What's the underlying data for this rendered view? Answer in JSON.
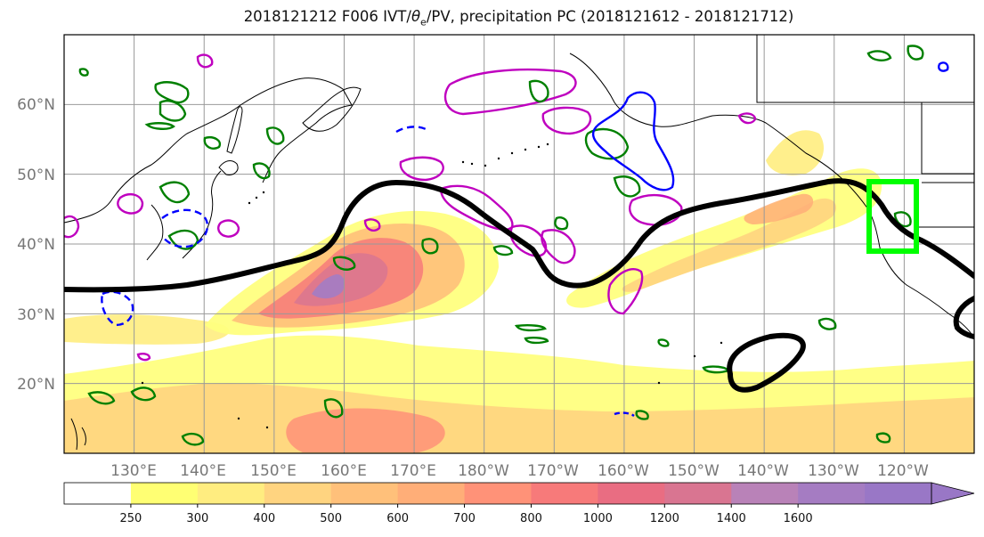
{
  "title": {
    "prefix": "2018121212 F006 IVT/",
    "theta": "θ",
    "theta_sub": "e",
    "suffix": "/PV, precipitation PC (2018121612 - 2018121712)"
  },
  "lat_labels": [
    "60°N",
    "50°N",
    "40°N",
    "30°N",
    "20°N"
  ],
  "lon_labels": [
    "130°E",
    "140°E",
    "150°E",
    "160°E",
    "170°E",
    "180°W",
    "170°W",
    "160°W",
    "150°W",
    "140°W",
    "130°W",
    "120°W"
  ],
  "colorbar": {
    "ticks": [
      "250",
      "300",
      "400",
      "500",
      "600",
      "700",
      "800",
      "1000",
      "1200",
      "1400",
      "1600"
    ],
    "colors": [
      "#ffffff",
      "#ffff73",
      "#ffed80",
      "#ffd480",
      "#ffc07a",
      "#ffae78",
      "#ff9278",
      "#f77a7a",
      "#e96d82",
      "#d97591",
      "#b982b8",
      "#a57cc2",
      "#9977c6"
    ]
  },
  "map_extent": {
    "lon_min": 120,
    "lon_max": 250,
    "lat_min": 10,
    "lat_max": 70
  },
  "colors": {
    "jet_contour": "#000000",
    "box": "#00ff00",
    "theta_pos": "#008000",
    "pv_pos": "#bf00bf",
    "neg": "#0000ff",
    "coast": "#000000",
    "grid": "#999999"
  }
}
